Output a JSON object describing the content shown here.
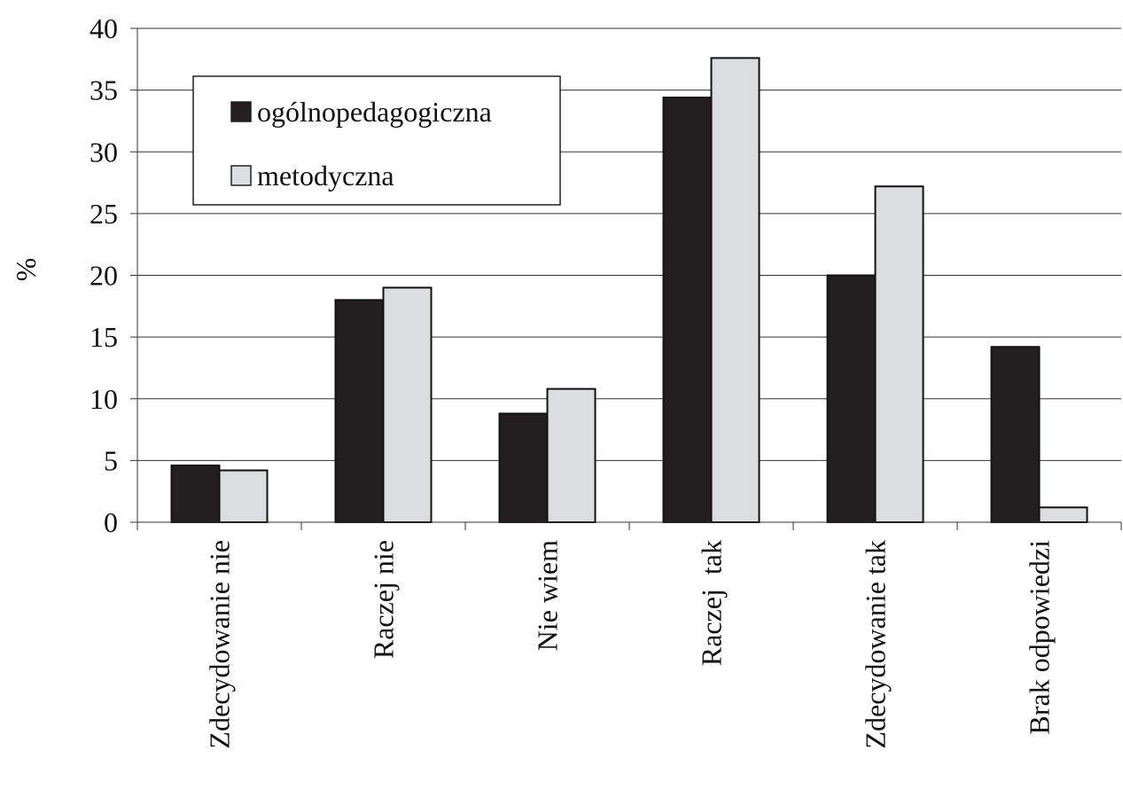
{
  "chart_data": {
    "type": "bar",
    "ylabel": "%",
    "ylim": [
      0,
      40
    ],
    "yticks": [
      0,
      5,
      10,
      15,
      20,
      25,
      30,
      35,
      40
    ],
    "grid": true,
    "legend_position": "top-left",
    "categories": [
      "Zdecydowanie nie",
      "Raczej nie",
      "Nie wiem",
      "Raczej  tak",
      "Zdecydowanie tak",
      "Brak odpowiedzi"
    ],
    "series": [
      {
        "name": "ogólnopedagogiczna",
        "color": "#231f20",
        "values": [
          4.6,
          18.0,
          8.8,
          34.4,
          20.0,
          14.2
        ]
      },
      {
        "name": "metodyczna",
        "color": "#dcdddf",
        "values": [
          4.2,
          19.0,
          10.8,
          37.6,
          27.2,
          1.2
        ]
      }
    ]
  }
}
